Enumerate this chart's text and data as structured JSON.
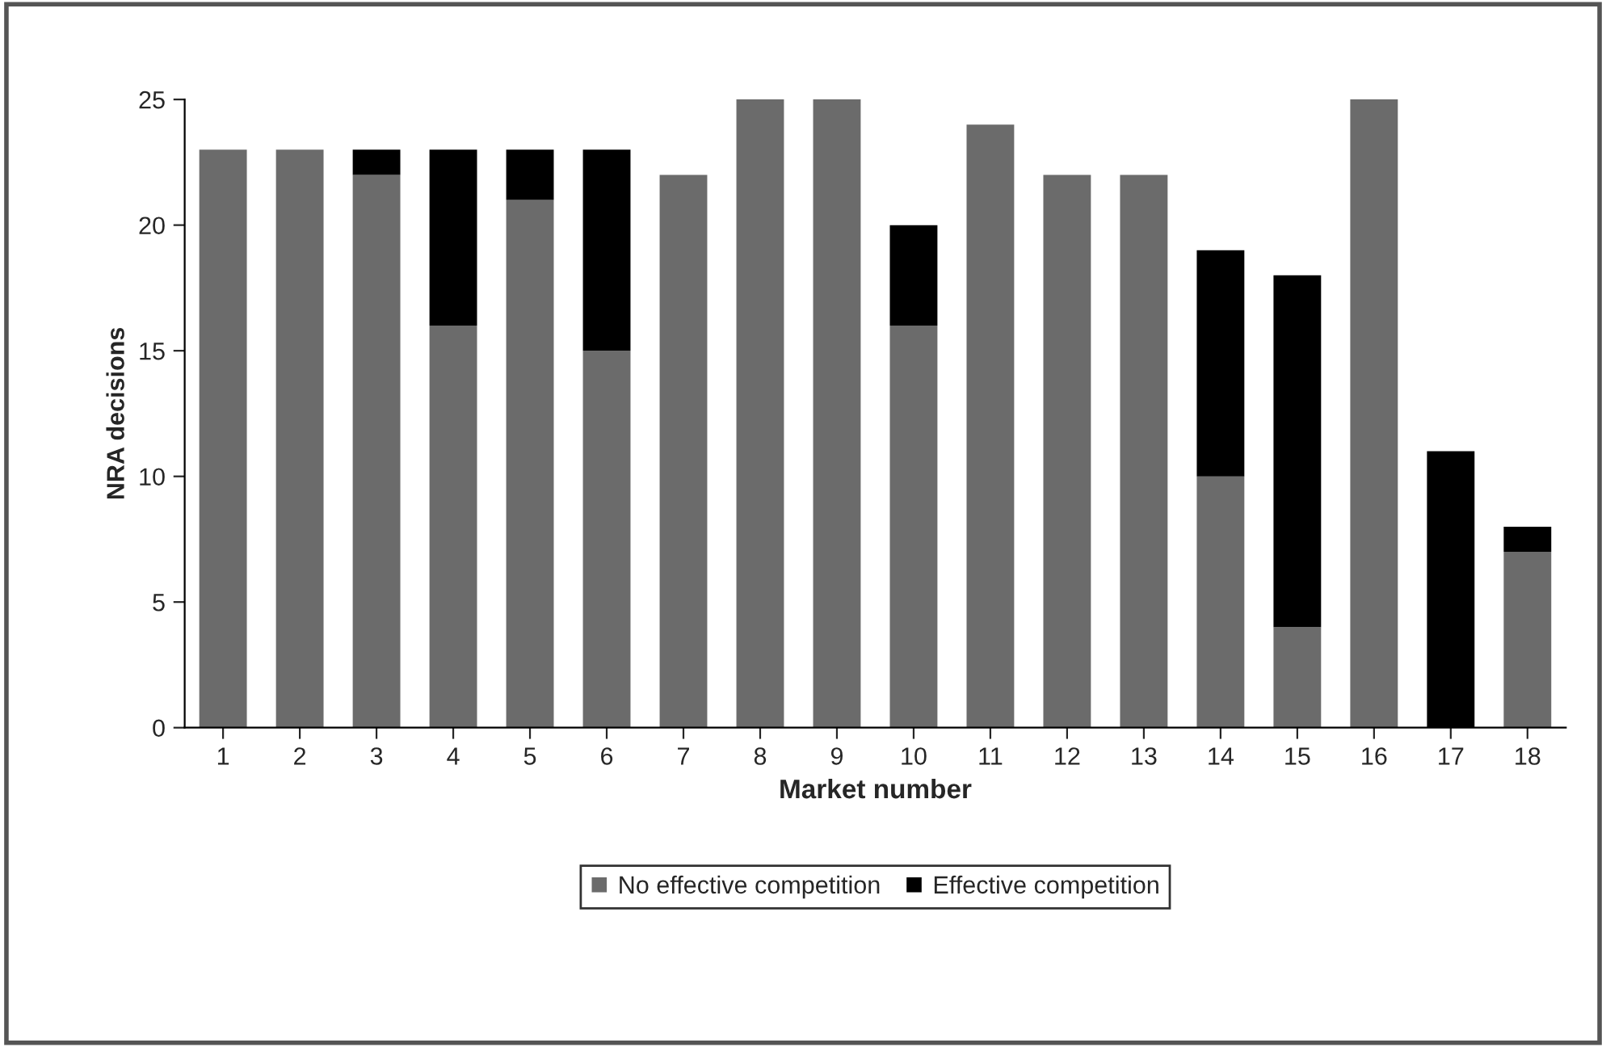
{
  "chart_data": {
    "type": "bar",
    "stacked": true,
    "xlabel": "Market number",
    "ylabel": "NRA decisions",
    "categories": [
      "1",
      "2",
      "3",
      "4",
      "5",
      "6",
      "7",
      "8",
      "9",
      "10",
      "11",
      "12",
      "13",
      "14",
      "15",
      "16",
      "17",
      "18"
    ],
    "series": [
      {
        "name": "No effective competition",
        "color": "#6b6b6b",
        "values": [
          23,
          23,
          22,
          16,
          21,
          15,
          22,
          25,
          25,
          16,
          24,
          22,
          22,
          10,
          4,
          25,
          0,
          7
        ]
      },
      {
        "name": "Effective competition",
        "color": "#000000",
        "values": [
          0,
          0,
          1,
          7,
          2,
          8,
          0,
          0,
          0,
          4,
          0,
          0,
          0,
          9,
          14,
          0,
          11,
          1
        ]
      }
    ],
    "ylim": [
      0,
      25
    ],
    "yticks": [
      0,
      5,
      10,
      15,
      20,
      25
    ],
    "grid": false,
    "legend": "bottom"
  }
}
